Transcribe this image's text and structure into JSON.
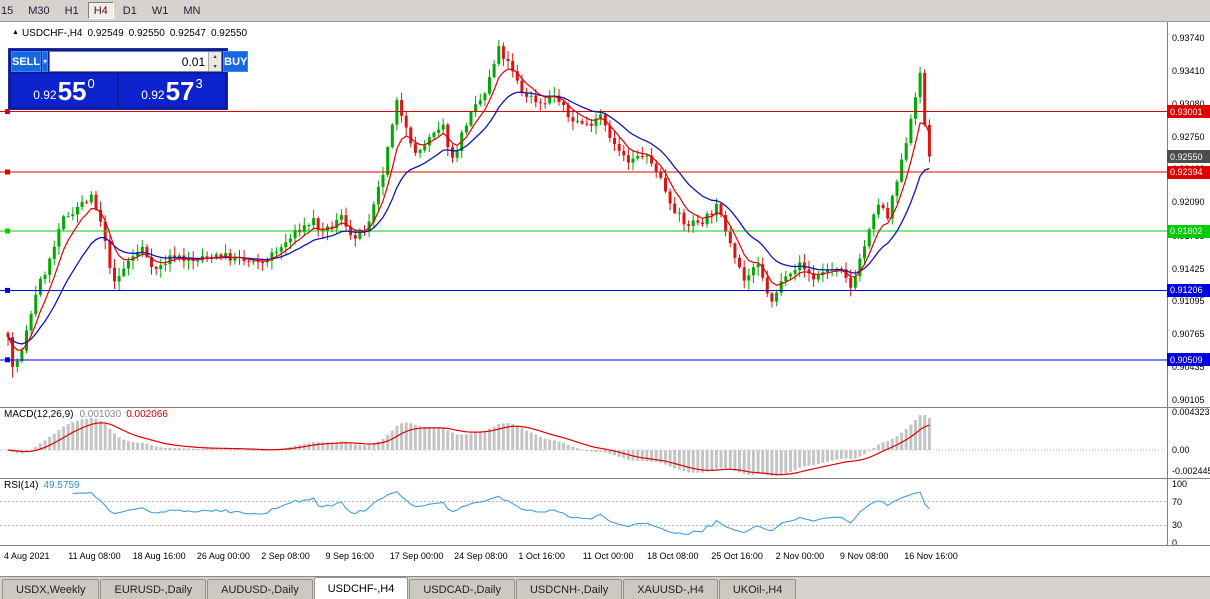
{
  "colors": {
    "up": "#00A800",
    "down": "#DC1414",
    "ma_fast": "#E00000",
    "ma_slow": "#1414B4",
    "macd_hist": "#C4C4C4",
    "macd_signal": "#E00000",
    "rsi_line": "#3F9FDF",
    "level_red": "#E00000",
    "level_green": "#00CC00",
    "level_blue": "#0000E0",
    "current_tag": "#4D4D4D"
  },
  "toolbar": {
    "timeframes": [
      {
        "label": "15",
        "active": false
      },
      {
        "label": "M30",
        "active": false
      },
      {
        "label": "H1",
        "active": false
      },
      {
        "label": "H4",
        "active": true
      },
      {
        "label": "D1",
        "active": false
      },
      {
        "label": "W1",
        "active": false
      },
      {
        "label": "MN",
        "active": false
      }
    ]
  },
  "chart_header": {
    "symbol_title": "USDCHF-,H4",
    "open": "0.92549",
    "high": "0.92550",
    "low": "0.92547",
    "close": "0.92550"
  },
  "trade_panel": {
    "sell_label": "SELL",
    "buy_label": "BUY",
    "volume": "0.01",
    "sell_price_prefix": "0.92",
    "sell_price_big": "55",
    "sell_price_sup": "0",
    "buy_price_prefix": "0.92",
    "buy_price_big": "57",
    "buy_price_sup": "3"
  },
  "price_axis_labels": [
    "0.93740",
    "0.93410",
    "0.93080",
    "0.92750",
    "0.92420",
    "0.92090",
    "0.91755",
    "0.91425",
    "0.91095",
    "0.90765",
    "0.90435",
    "0.90105"
  ],
  "price_levels": [
    {
      "label": "0.93001",
      "value": 0.93001,
      "color": "red"
    },
    {
      "label": "0.92394",
      "value": 0.92394,
      "color": "red"
    },
    {
      "label": "0.91802",
      "value": 0.91802,
      "color": "green"
    },
    {
      "label": "0.91206",
      "value": 0.91206,
      "color": "blue"
    },
    {
      "label": "0.90509",
      "value": 0.90509,
      "color": "blue"
    }
  ],
  "current_price": {
    "label": "0.92550",
    "value": 0.9255
  },
  "macd_panel": {
    "name": "MACD(12,26,9)",
    "value_main": "0.001030",
    "value_signal": "0.002066",
    "axis_labels": [
      "0.004323",
      "0.00",
      "-0.002445"
    ],
    "axis_values": [
      0.004323,
      0,
      -0.002445
    ]
  },
  "rsi_panel": {
    "name": "RSI(14)",
    "value": "49.5759",
    "axis_labels": [
      "100",
      "70",
      "30",
      "0"
    ],
    "axis_values": [
      100,
      70,
      30,
      0
    ],
    "level_lines": [
      70,
      30
    ]
  },
  "time_axis": [
    "4 Aug 2021",
    "11 Aug 08:00",
    "18 Aug 16:00",
    "26 Aug 00:00",
    "2 Sep 08:00",
    "9 Sep 16:00",
    "17 Sep 00:00",
    "24 Sep 08:00",
    "1 Oct 16:00",
    "11 Oct 00:00",
    "18 Oct 08:00",
    "25 Oct 16:00",
    "2 Nov 00:00",
    "9 Nov 08:00",
    "16 Nov 16:00"
  ],
  "tabs": [
    {
      "label": "USDX,Weekly",
      "active": false
    },
    {
      "label": "EURUSD-,Daily",
      "active": false
    },
    {
      "label": "AUDUSD-,Daily",
      "active": false
    },
    {
      "label": "USDCHF-,H4",
      "active": true
    },
    {
      "label": "USDCAD-,Daily",
      "active": false
    },
    {
      "label": "USDCNH-,Daily",
      "active": false
    },
    {
      "label": "XAUUSD-,H4",
      "active": false
    },
    {
      "label": "UKOil-,H4",
      "active": false
    }
  ],
  "chart_data": {
    "type": "candlestick",
    "symbol": "USDCHF-",
    "timeframe": "H4",
    "bars": 200,
    "price_axis_range": [
      0.90105,
      0.9374
    ],
    "horizontal_levels": [
      0.93001,
      0.92394,
      0.91802,
      0.91206,
      0.90509
    ],
    "current_price": 0.9255,
    "indicators": [
      "MACD(12,26,9)",
      "RSI(14)"
    ],
    "price_waypoints": [
      [
        0,
        0.9078
      ],
      [
        1,
        0.9042
      ],
      [
        3,
        0.9058
      ],
      [
        6,
        0.9118
      ],
      [
        9,
        0.915
      ],
      [
        12,
        0.9192
      ],
      [
        15,
        0.9205
      ],
      [
        18,
        0.9213
      ],
      [
        20,
        0.9188
      ],
      [
        23,
        0.9126
      ],
      [
        26,
        0.915
      ],
      [
        29,
        0.9163
      ],
      [
        32,
        0.9141
      ],
      [
        36,
        0.9157
      ],
      [
        40,
        0.9149
      ],
      [
        45,
        0.9157
      ],
      [
        50,
        0.9151
      ],
      [
        54,
        0.9146
      ],
      [
        58,
        0.9159
      ],
      [
        63,
        0.9182
      ],
      [
        66,
        0.9191
      ],
      [
        68,
        0.9176
      ],
      [
        72,
        0.9194
      ],
      [
        75,
        0.9172
      ],
      [
        78,
        0.9186
      ],
      [
        81,
        0.9238
      ],
      [
        84,
        0.9308
      ],
      [
        86,
        0.9288
      ],
      [
        88,
        0.9256
      ],
      [
        91,
        0.9272
      ],
      [
        94,
        0.9284
      ],
      [
        96,
        0.9252
      ],
      [
        99,
        0.9289
      ],
      [
        103,
        0.9318
      ],
      [
        106,
        0.9362
      ],
      [
        108,
        0.9348
      ],
      [
        111,
        0.932
      ],
      [
        115,
        0.9309
      ],
      [
        118,
        0.9317
      ],
      [
        121,
        0.9295
      ],
      [
        125,
        0.9286
      ],
      [
        128,
        0.9299
      ],
      [
        131,
        0.9266
      ],
      [
        134,
        0.9248
      ],
      [
        137,
        0.9257
      ],
      [
        140,
        0.9243
      ],
      [
        143,
        0.9211
      ],
      [
        146,
        0.9186
      ],
      [
        150,
        0.9191
      ],
      [
        153,
        0.9204
      ],
      [
        156,
        0.9171
      ],
      [
        159,
        0.9131
      ],
      [
        162,
        0.9144
      ],
      [
        165,
        0.9107
      ],
      [
        168,
        0.9139
      ],
      [
        171,
        0.9146
      ],
      [
        174,
        0.9133
      ],
      [
        177,
        0.9142
      ],
      [
        180,
        0.9138
      ],
      [
        182,
        0.9124
      ],
      [
        184,
        0.9152
      ],
      [
        186,
        0.9179
      ],
      [
        188,
        0.9208
      ],
      [
        190,
        0.9193
      ],
      [
        193,
        0.9248
      ],
      [
        196,
        0.9318
      ],
      [
        197,
        0.9335
      ],
      [
        198,
        0.9287
      ],
      [
        199,
        0.9255
      ]
    ]
  }
}
